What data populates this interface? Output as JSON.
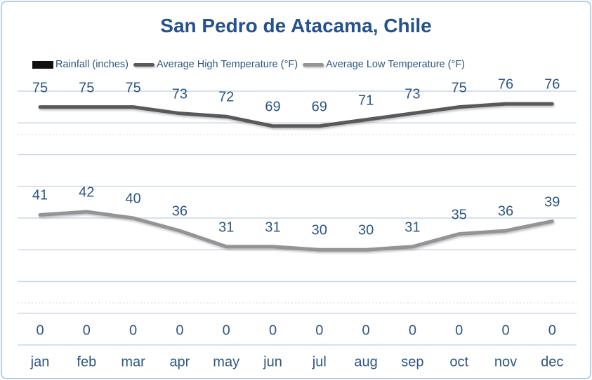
{
  "page": {
    "background": "#ffffff",
    "frame_border_color": "#b7cee6"
  },
  "chart_data": {
    "type": "line",
    "title": "San Pedro de Atacama, Chile",
    "title_color": "#24518f",
    "label_color": "#2e5681",
    "categories": [
      "jan",
      "feb",
      "mar",
      "apr",
      "may",
      "jun",
      "jul",
      "aug",
      "sep",
      "oct",
      "nov",
      "dec"
    ],
    "series": [
      {
        "name": "Rainfall (inches)",
        "type": "bar",
        "color": "#111111",
        "values": [
          0,
          0,
          0,
          0,
          0,
          0,
          0,
          0,
          0,
          0,
          0,
          0
        ]
      },
      {
        "name": "Average High Temperature (°F)",
        "type": "line",
        "color": "#595959",
        "values": [
          75,
          75,
          75,
          73,
          72,
          69,
          69,
          71,
          73,
          75,
          76,
          76
        ]
      },
      {
        "name": "Average Low Temperature (°F)",
        "type": "line",
        "color": "#949494",
        "values": [
          41,
          42,
          40,
          36,
          31,
          31,
          30,
          30,
          31,
          35,
          36,
          39
        ]
      }
    ],
    "ylim": [
      0,
      80
    ],
    "gridline_step": 10,
    "grid_color": "#c9d8ea",
    "minor_grid_color": "#dde6f1",
    "grid_on": true,
    "legend_position": "top",
    "value_axis_labels_visible": false
  }
}
